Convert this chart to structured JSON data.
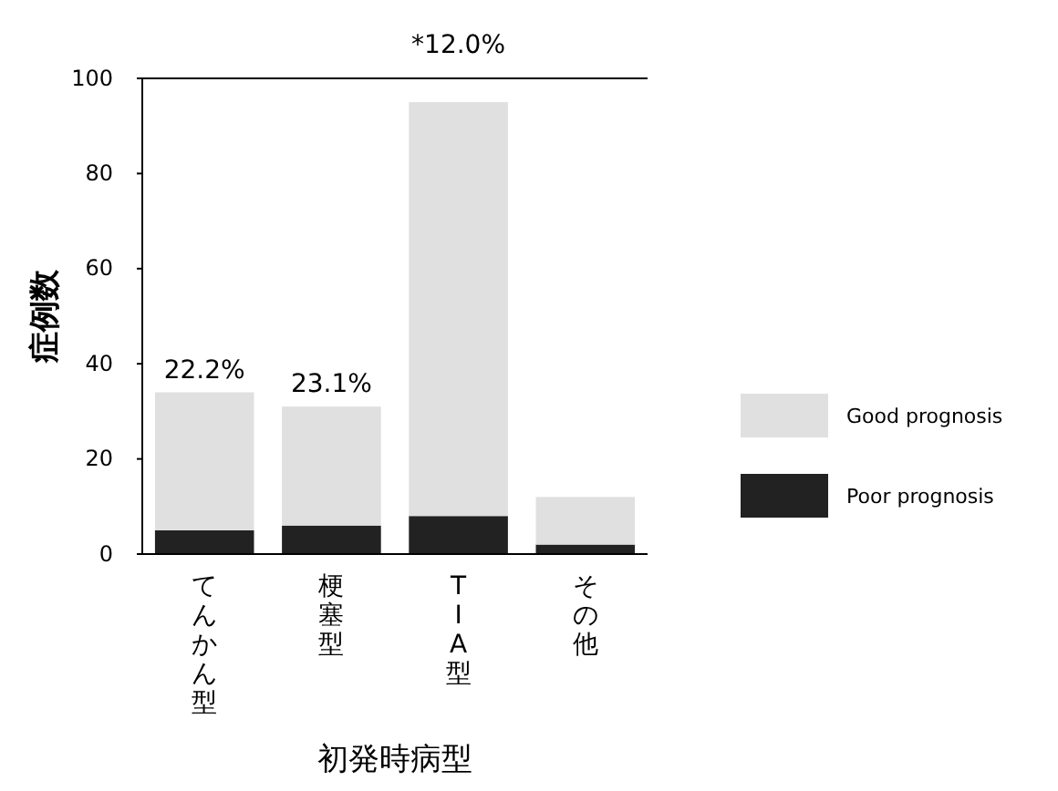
{
  "chart_data": {
    "type": "bar",
    "stacked": true,
    "xlabel": "初発時病型",
    "ylabel": "症例数",
    "categories": [
      "てんかん型",
      "梗塞型",
      "TIA型",
      "その他"
    ],
    "series": [
      {
        "name": "Poor prognosis",
        "color": "#222222",
        "values": [
          5,
          6,
          8,
          2
        ]
      },
      {
        "name": "Good prognosis",
        "color": "#e0e0e0",
        "values": [
          29,
          25,
          87,
          10
        ]
      }
    ],
    "ylim": [
      0,
      100
    ],
    "yticks": [
      0,
      20,
      40,
      60,
      80,
      100
    ],
    "grid": false,
    "legend": "right",
    "annotations": [
      "22.2%",
      "23.1%",
      "*12.0%"
    ]
  }
}
